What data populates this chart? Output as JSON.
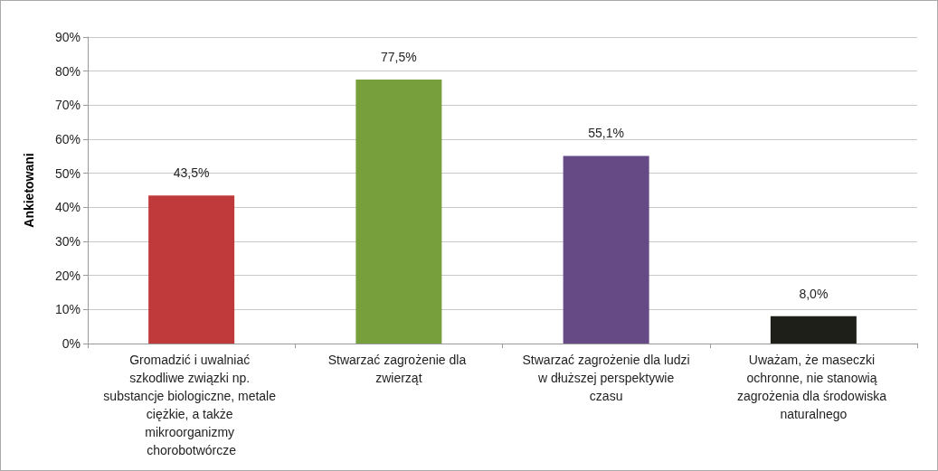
{
  "chart_data": {
    "type": "bar",
    "ylabel": "Ankietowani",
    "categories": [
      "Gromadzić i uwalniać szkodliwe związki np. substancje biologiczne, metale ciężkie, a także mikroorganizmy chorobotwórcze",
      "Stwarzać zagrożenie dla zwierząt",
      "Stwarzać zagrożenie dla ludzi w dłuższej perspektywie czasu",
      "Uważam, że maseczki ochronne, nie stanowią zagrożenia dla środowiska naturalnego"
    ],
    "values": [
      43.5,
      77.5,
      55.1,
      8.0
    ],
    "colors": [
      "#c0393b",
      "#77a03c",
      "#654a86",
      "#1f1f1a"
    ],
    "value_labels": [
      "43,5%",
      "77,5%",
      "55,1%",
      "8,0%"
    ],
    "ylim": [
      0,
      90
    ],
    "yticks": [
      {
        "value": 0,
        "label": "0%"
      },
      {
        "value": 10,
        "label": "10%"
      },
      {
        "value": 20,
        "label": "20%"
      },
      {
        "value": 30,
        "label": "30%"
      },
      {
        "value": 40,
        "label": "40%"
      },
      {
        "value": 50,
        "label": "50%"
      },
      {
        "value": 60,
        "label": "60%"
      },
      {
        "value": 70,
        "label": "70%"
      },
      {
        "value": 80,
        "label": "80%"
      },
      {
        "value": 90,
        "label": "90%"
      }
    ],
    "grid": "y"
  }
}
